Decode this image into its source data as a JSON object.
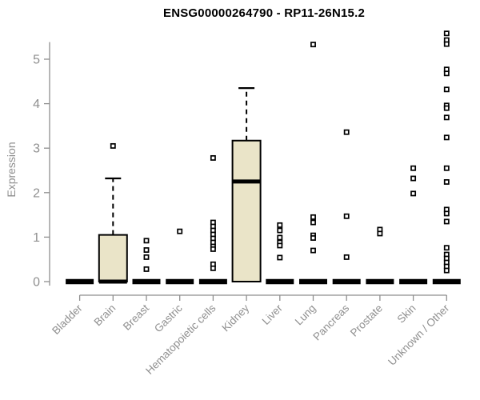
{
  "chart_data": {
    "type": "boxplot",
    "title": "ENSG00000264790 - RP11-26N15.2",
    "ylabel": "Expression",
    "xlabel": "",
    "ylim": [
      0,
      5.6
    ],
    "yticks": [
      0,
      1,
      2,
      3,
      4,
      5
    ],
    "grid": false,
    "legend": "none",
    "colors": {
      "box_fill": "#EAE4C8",
      "box_edge": "#000000",
      "median": "#000000",
      "outlier_edge": "#000000",
      "outlier_fill": "#ffffff",
      "axis": "#8f8f8f",
      "tick_label": "#8f8f8f",
      "title": "#000000"
    },
    "categories": [
      "Bladder",
      "Brain",
      "Breast",
      "Gastric",
      "Hematopoietic cells",
      "Kidney",
      "Liver",
      "Lung",
      "Pancreas",
      "Prostate",
      "Skin",
      "Unknown / Other"
    ],
    "boxes": [
      {
        "category": "Bladder",
        "q1": 0,
        "median": 0,
        "q3": 0,
        "whisker_low": 0,
        "whisker_high": 0,
        "outliers": []
      },
      {
        "category": "Brain",
        "q1": 0,
        "median": 0,
        "q3": 1.05,
        "whisker_low": 0,
        "whisker_high": 2.32,
        "outliers": [
          3.05
        ]
      },
      {
        "category": "Breast",
        "q1": 0,
        "median": 0,
        "q3": 0,
        "whisker_low": 0,
        "whisker_high": 0,
        "outliers": [
          0.92,
          0.71,
          0.55,
          0.28
        ]
      },
      {
        "category": "Gastric",
        "q1": 0,
        "median": 0,
        "q3": 0,
        "whisker_low": 0,
        "whisker_high": 0,
        "outliers": [
          1.13
        ]
      },
      {
        "category": "Hematopoietic cells",
        "q1": 0,
        "median": 0,
        "q3": 0,
        "whisker_low": 0,
        "whisker_high": 0,
        "outliers": [
          2.78,
          1.33,
          1.24,
          1.15,
          1.06,
          0.97,
          0.88,
          0.79,
          0.73,
          0.39,
          0.3
        ]
      },
      {
        "category": "Kidney",
        "q1": 0,
        "median": 2.25,
        "q3": 3.17,
        "whisker_low": 0,
        "whisker_high": 4.35,
        "outliers": []
      },
      {
        "category": "Liver",
        "q1": 0,
        "median": 0,
        "q3": 0,
        "whisker_low": 0,
        "whisker_high": 0,
        "outliers": [
          1.27,
          1.15,
          0.99,
          0.88,
          0.81,
          0.54
        ]
      },
      {
        "category": "Lung",
        "q1": 0,
        "median": 0,
        "q3": 0,
        "whisker_low": 0,
        "whisker_high": 0,
        "outliers": [
          5.33,
          1.45,
          1.33,
          1.04,
          0.98,
          0.7
        ]
      },
      {
        "category": "Pancreas",
        "q1": 0,
        "median": 0,
        "q3": 0,
        "whisker_low": 0,
        "whisker_high": 0,
        "outliers": [
          3.36,
          1.47,
          0.55
        ]
      },
      {
        "category": "Prostate",
        "q1": 0,
        "median": 0,
        "q3": 0,
        "whisker_low": 0,
        "whisker_high": 0,
        "outliers": [
          1.17,
          1.08
        ]
      },
      {
        "category": "Skin",
        "q1": 0,
        "median": 0,
        "q3": 0,
        "whisker_low": 0,
        "whisker_high": 0,
        "outliers": [
          2.55,
          2.32,
          1.98
        ]
      },
      {
        "category": "Unknown / Other",
        "q1": 0,
        "median": 0,
        "q3": 0,
        "whisker_low": 0,
        "whisker_high": 0,
        "outliers": [
          5.58,
          5.43,
          5.34,
          4.77,
          4.68,
          4.32,
          3.96,
          3.9,
          3.69,
          3.24,
          2.55,
          2.24,
          1.62,
          1.53,
          1.35,
          0.76,
          0.61,
          0.52,
          0.43,
          0.34,
          0.25
        ]
      }
    ]
  }
}
